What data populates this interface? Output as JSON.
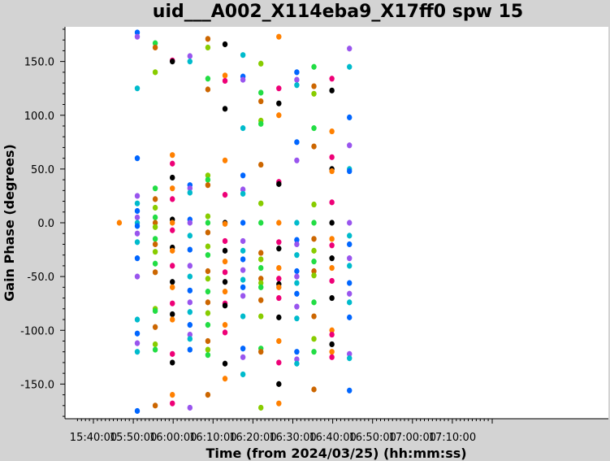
{
  "chart_data": {
    "type": "scatter",
    "title": "uid___A002_X114eba9_X17ff0 spw 15",
    "xlabel": "Time (from 2024/03/25) (hh:mm:ss)",
    "ylabel": "Gain Phase (degrees)",
    "xlim_minutes": [
      935,
      1010
    ],
    "ylim": [
      -182,
      182
    ],
    "x_ticks": [
      {
        "minute": 940,
        "label": "15:40:00"
      },
      {
        "minute": 950,
        "label": "15:50:00"
      },
      {
        "minute": 960,
        "label": "16:00:00"
      },
      {
        "minute": 970,
        "label": "16:10:00"
      },
      {
        "minute": 980,
        "label": "16:20:00"
      },
      {
        "minute": 990,
        "label": "16:30:00"
      },
      {
        "minute": 1000,
        "label": "16:40:00"
      },
      {
        "minute": 1010,
        "label": "16:50:00"
      },
      {
        "minute": 1020,
        "label": "17:00:00"
      },
      {
        "minute": 1030,
        "label": "17:10:00"
      }
    ],
    "y_ticks": [
      {
        "value": 150,
        "label": "150.0"
      },
      {
        "value": 100,
        "label": "100.0"
      },
      {
        "value": 50,
        "label": "50.0"
      },
      {
        "value": 0,
        "label": "0.0"
      },
      {
        "value": -50,
        "label": "-50.0"
      },
      {
        "value": -100,
        "label": "-100.0"
      },
      {
        "value": -150,
        "label": "-150.0"
      }
    ],
    "grid": false,
    "palette": [
      "#ff8000",
      "#0066ff",
      "#22dd44",
      "#ee0077",
      "#9955ee",
      "#cc6600",
      "#000000",
      "#00bbcc",
      "#88cc00"
    ],
    "scan_times_minutes": [
      946.5,
      951.0,
      955.5,
      959.8,
      964.2,
      968.7,
      973.0,
      977.5,
      982.0,
      986.5,
      991.0,
      995.3,
      999.8,
      1004.2,
      1008.6
    ],
    "series": [
      {
        "x": 946.5,
        "y": [
          0
        ]
      },
      {
        "x": 951.0,
        "y": [
          177,
          173,
          125,
          60,
          25,
          18,
          11,
          5,
          0,
          -3,
          -10,
          -18,
          -33,
          -50,
          -90,
          -103,
          -112,
          -120,
          -175
        ]
      },
      {
        "x": 955.5,
        "y": [
          167,
          163,
          140,
          32,
          22,
          14,
          5,
          0,
          -4,
          -15,
          -20,
          -27,
          -38,
          -46,
          -80,
          -82,
          -97,
          -113,
          -118,
          -170
        ]
      },
      {
        "x": 959.8,
        "y": [
          151,
          150,
          63,
          55,
          42,
          32,
          22,
          3,
          0,
          -7,
          -23,
          -26,
          -40,
          -55,
          -60,
          -75,
          -85,
          -90,
          -122,
          -130,
          -160,
          -168
        ]
      },
      {
        "x": 964.2,
        "y": [
          155,
          150,
          35,
          32,
          28,
          3,
          0,
          -12,
          -25,
          -40,
          -50,
          -63,
          -74,
          -83,
          -95,
          -104,
          -108,
          -118,
          -172
        ]
      },
      {
        "x": 968.7,
        "y": [
          171,
          163,
          134,
          124,
          44,
          40,
          35,
          6,
          0,
          -9,
          -22,
          -30,
          -45,
          -52,
          -64,
          -74,
          -84,
          -95,
          -110,
          -118,
          -123,
          -160
        ]
      },
      {
        "x": 973.0,
        "y": [
          166,
          137,
          132,
          106,
          58,
          26,
          0,
          -1,
          -17,
          -26,
          -36,
          -46,
          -55,
          -64,
          -75,
          -77,
          -95,
          -102,
          -131,
          -145
        ]
      },
      {
        "x": 977.5,
        "y": [
          156,
          136,
          133,
          88,
          44,
          31,
          27,
          0,
          -17,
          -26,
          -34,
          -44,
          -53,
          -60,
          -68,
          -87,
          -117,
          -125,
          -141
        ]
      },
      {
        "x": 982.0,
        "y": [
          148,
          121,
          113,
          95,
          92,
          54,
          18,
          0,
          -28,
          -34,
          -42,
          -52,
          -56,
          -60,
          -72,
          -87,
          -117,
          -120,
          -172
        ]
      },
      {
        "x": 986.5,
        "y": [
          173,
          125,
          111,
          100,
          38,
          36,
          0,
          -18,
          -24,
          -42,
          -52,
          -57,
          -60,
          -70,
          -88,
          -110,
          -130,
          -150,
          -168
        ]
      },
      {
        "x": 991.0,
        "y": [
          140,
          133,
          128,
          75,
          58,
          0,
          -16,
          -20,
          -30,
          -45,
          -50,
          -56,
          -66,
          -78,
          -89,
          -120,
          -127,
          -131
        ]
      },
      {
        "x": 995.3,
        "y": [
          145,
          127,
          120,
          88,
          71,
          17,
          0,
          -15,
          -26,
          -36,
          -45,
          -49,
          -74,
          -87,
          -108,
          -120,
          -155
        ]
      },
      {
        "x": 999.8,
        "y": [
          134,
          123,
          85,
          61,
          50,
          48,
          19,
          0,
          -15,
          -21,
          -33,
          -42,
          -54,
          -70,
          -100,
          -104,
          -113,
          -120,
          -125
        ]
      },
      {
        "x": 1004.2,
        "y": [
          162,
          145,
          98,
          72,
          50,
          48,
          0,
          -12,
          -20,
          -33,
          -40,
          -56,
          -66,
          -74,
          -88,
          -122,
          -126,
          -156
        ]
      }
    ]
  }
}
